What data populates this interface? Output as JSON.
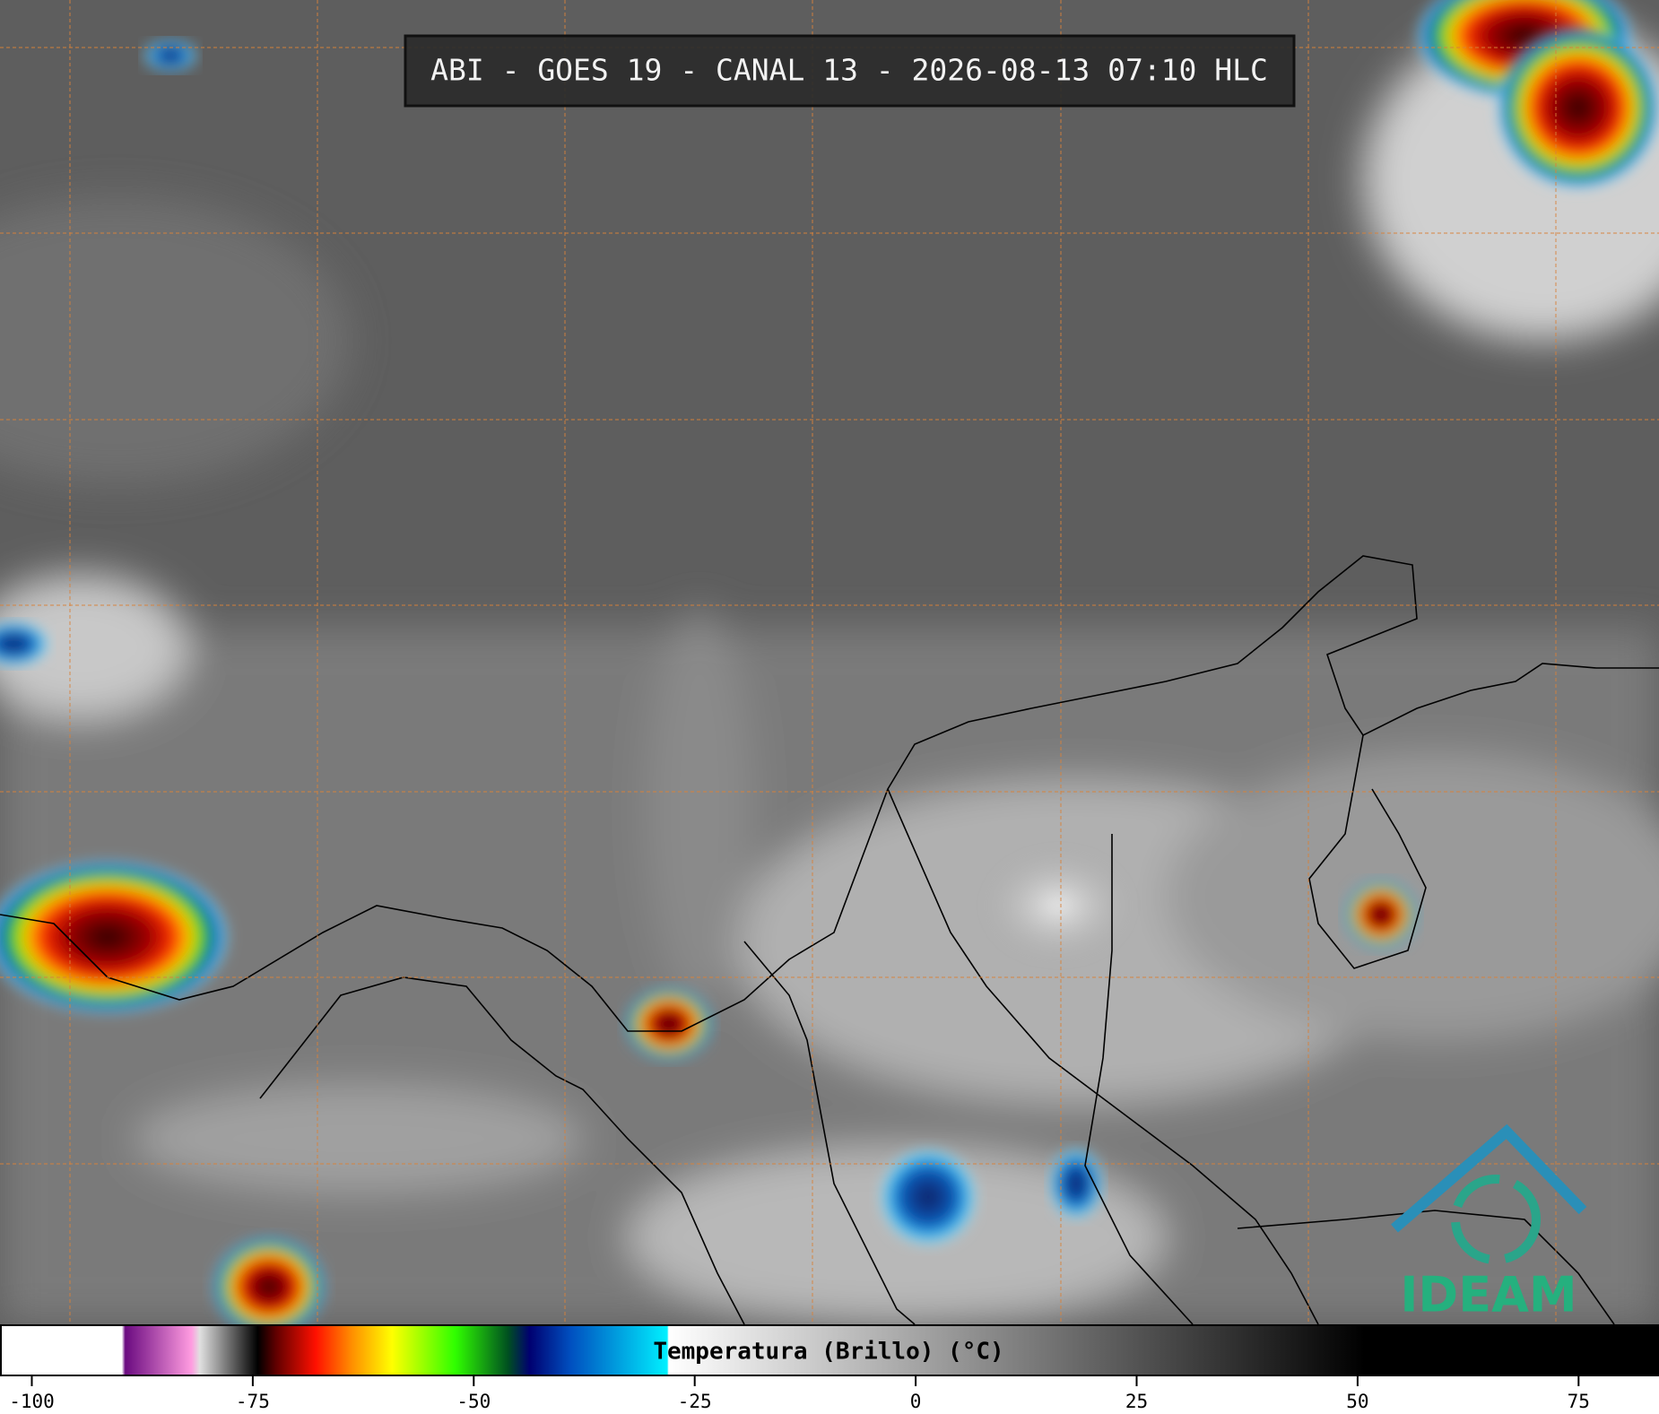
{
  "header": {
    "title": "ABI - GOES 19 - CANAL 13 - 2026-08-13 07:10 HLC"
  },
  "colorbar": {
    "label": "Temperatura (Brillo) (°C)",
    "lim": [
      -103.6,
      84.1
    ],
    "ticks": [
      -100,
      -75,
      -50,
      -25,
      0,
      25,
      50,
      75
    ]
  },
  "logo": {
    "text": "IDEAM"
  }
}
